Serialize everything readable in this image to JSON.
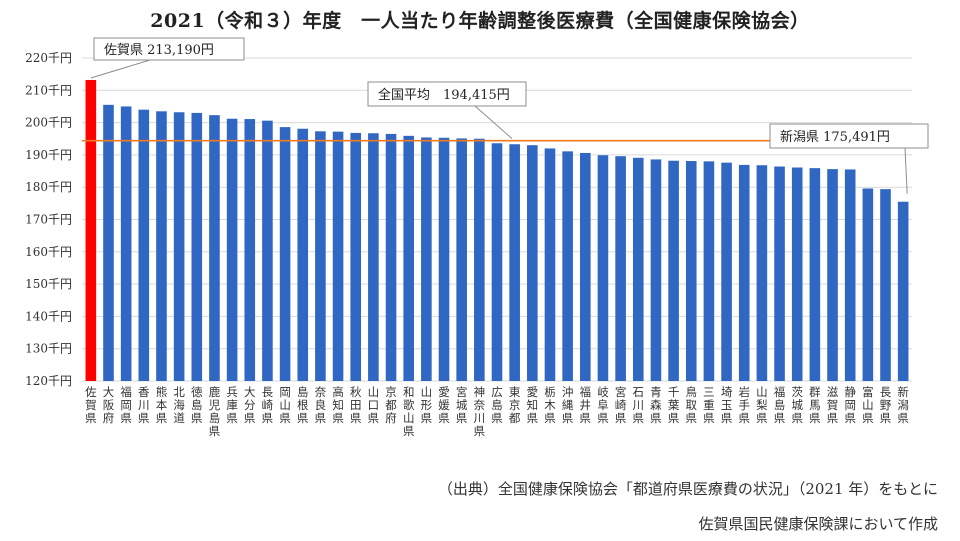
{
  "chart_data": {
    "type": "bar",
    "title": "2021（令和３）年度　一人当たり年齢調整後医療費（全国健康保険協会）",
    "ylim": [
      120,
      220
    ],
    "y_ticks": [
      "120千円",
      "130千円",
      "140千円",
      "150千円",
      "160千円",
      "170千円",
      "180千円",
      "190千円",
      "200千円",
      "210千円",
      "220千円"
    ],
    "grid": true,
    "categories": [
      "佐賀県",
      "大阪府",
      "福岡県",
      "香川県",
      "熊本県",
      "北海道",
      "徳島県",
      "鹿児島県",
      "兵庫県",
      "大分県",
      "長崎県",
      "岡山県",
      "島根県",
      "奈良県",
      "高知県",
      "秋田県",
      "山口県",
      "京都府",
      "和歌山県",
      "山形県",
      "愛媛県",
      "宮城県",
      "神奈川県",
      "広島県",
      "東京都",
      "愛知県",
      "栃木県",
      "沖縄県",
      "福井県",
      "岐阜県",
      "宮崎県",
      "石川県",
      "青森県",
      "千葉県",
      "鳥取県",
      "三重県",
      "埼玉県",
      "岩手県",
      "山梨県",
      "福島県",
      "茨城県",
      "群馬県",
      "滋賀県",
      "静岡県",
      "富山県",
      "長野県",
      "新潟県"
    ],
    "values": [
      213.2,
      205.5,
      205.0,
      204.0,
      203.5,
      203.2,
      203.0,
      202.3,
      201.2,
      201.1,
      200.6,
      198.6,
      198.1,
      197.3,
      197.2,
      196.8,
      196.7,
      196.5,
      195.9,
      195.4,
      195.3,
      195.1,
      195.0,
      193.6,
      193.3,
      193.0,
      192.0,
      191.1,
      190.6,
      189.9,
      189.6,
      189.1,
      188.6,
      188.2,
      188.1,
      188.0,
      187.6,
      186.9,
      186.8,
      186.4,
      186.1,
      185.9,
      185.6,
      185.5,
      179.6,
      179.4,
      175.5
    ],
    "highlight_color": "#ff0000",
    "bar_color": "#2f67c2",
    "average_line": {
      "value": 194.415,
      "color": "#f07a1f"
    },
    "annotations": [
      {
        "label": "佐賀県 213,190円",
        "target_index": 0
      },
      {
        "label": "全国平均　194,415円",
        "target": "average"
      },
      {
        "label": "新潟県 175,491円",
        "target_index": 46
      }
    ]
  },
  "source": {
    "line1": "（出典）全国健康保険協会「都道府県医療費の状況」（2021 年）をもとに",
    "line2": "佐賀県国民健康保険課において作成"
  }
}
